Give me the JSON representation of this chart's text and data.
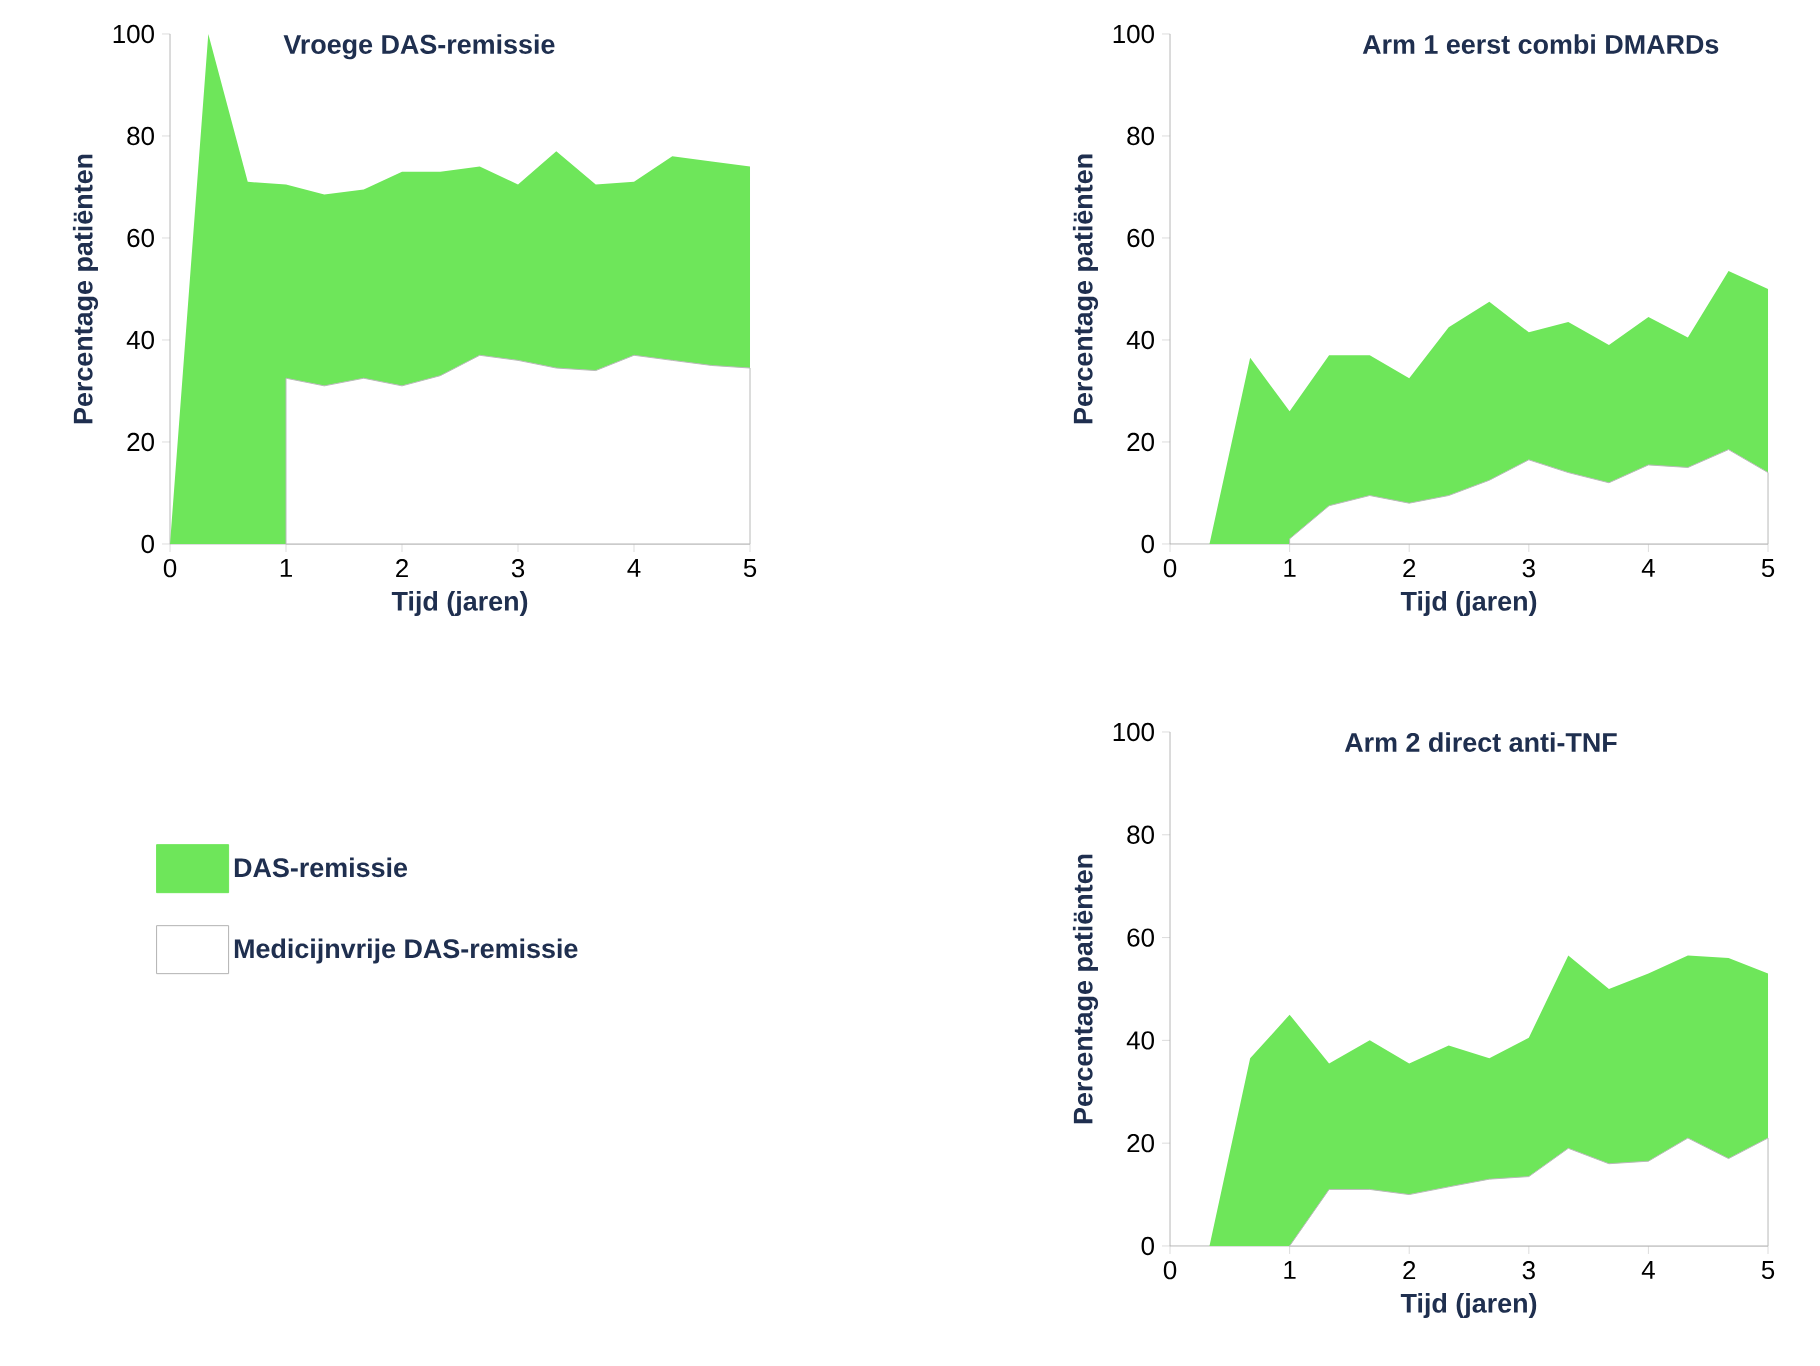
{
  "chart_data": [
    {
      "type": "area",
      "title": "Vroege DAS-remissie",
      "xlabel": "Tijd (jaren)",
      "ylabel": "Percentage patiënten",
      "xlim": [
        0,
        5
      ],
      "ylim": [
        0,
        100
      ],
      "xticks": [
        0,
        1,
        2,
        3,
        4,
        5
      ],
      "yticks": [
        0,
        20,
        40,
        60,
        80,
        100
      ],
      "legend": "bottom",
      "series": [
        {
          "name": "DAS-remissie",
          "color": "#6ee65a",
          "x": [
            0,
            0.33,
            0.67,
            1,
            1.33,
            1.67,
            2,
            2.33,
            2.67,
            3,
            3.33,
            3.67,
            4,
            4.33,
            4.67,
            5
          ],
          "values": [
            0,
            100,
            71,
            70.5,
            68.5,
            69.5,
            73,
            73,
            74,
            70.5,
            77,
            70.5,
            71,
            76,
            75,
            74
          ]
        },
        {
          "name": "Medicijnvrije DAS-remissie",
          "color": "#ffffff",
          "x": [
            1,
            1.33,
            1.67,
            2,
            2.33,
            2.67,
            3,
            3.33,
            3.67,
            4,
            4.33,
            4.67,
            5
          ],
          "values": [
            32.5,
            31,
            32.5,
            31,
            33,
            37,
            36,
            34.5,
            34,
            37,
            36,
            35,
            34.5
          ]
        }
      ]
    },
    {
      "type": "area",
      "title": "Arm 1 eerst combi DMARDs",
      "xlabel": "Tijd (jaren)",
      "ylabel": "Percentage patiënten",
      "xlim": [
        0,
        5
      ],
      "ylim": [
        0,
        100
      ],
      "xticks": [
        0,
        1,
        2,
        3,
        4,
        5
      ],
      "yticks": [
        0,
        20,
        40,
        60,
        80,
        100
      ],
      "series": [
        {
          "color": "#6ee65a",
          "x": [
            0.33,
            0.67,
            1,
            1.33,
            1.67,
            2,
            2.33,
            2.67,
            3,
            3.33,
            3.67,
            4,
            4.33,
            4.67,
            5
          ],
          "values": [
            0,
            36.5,
            26,
            37,
            37,
            32.5,
            42.5,
            47.5,
            41.5,
            43.5,
            39,
            44.5,
            40.5,
            53.5,
            50
          ]
        },
        {
          "color": "#ffffff",
          "x": [
            1,
            1.33,
            1.67,
            2,
            2.33,
            2.67,
            3,
            3.33,
            3.67,
            4,
            4.33,
            4.67,
            5
          ],
          "values": [
            1,
            7.5,
            9.5,
            8,
            9.5,
            12.5,
            16.5,
            14,
            12,
            15.5,
            15,
            18.5,
            14
          ]
        }
      ]
    },
    {
      "type": "area",
      "title": "Arm 2 direct anti-TNF",
      "xlabel": "Tijd (jaren)",
      "ylabel": "Percentage patiënten",
      "xlim": [
        0,
        5
      ],
      "ylim": [
        0,
        100
      ],
      "xticks": [
        0,
        1,
        2,
        3,
        4,
        5
      ],
      "yticks": [
        0,
        20,
        40,
        60,
        80,
        100
      ],
      "series": [
        {
          "color": "#6ee65a",
          "x": [
            0.33,
            0.67,
            1,
            1.33,
            1.67,
            2,
            2.33,
            2.67,
            3,
            3.33,
            3.67,
            4,
            4.33,
            4.67,
            5
          ],
          "values": [
            0,
            36.5,
            45,
            35.5,
            40,
            35.5,
            39,
            36.5,
            40.5,
            56.5,
            50,
            53,
            56.5,
            56,
            53
          ]
        },
        {
          "color": "#ffffff",
          "x": [
            1,
            1.33,
            1.67,
            2,
            2.33,
            2.67,
            3,
            3.33,
            3.67,
            4,
            4.33,
            4.67,
            5
          ],
          "values": [
            0,
            11,
            11,
            10,
            11.5,
            13,
            13.5,
            19,
            16,
            16.5,
            21,
            17,
            21
          ]
        }
      ]
    }
  ]
}
